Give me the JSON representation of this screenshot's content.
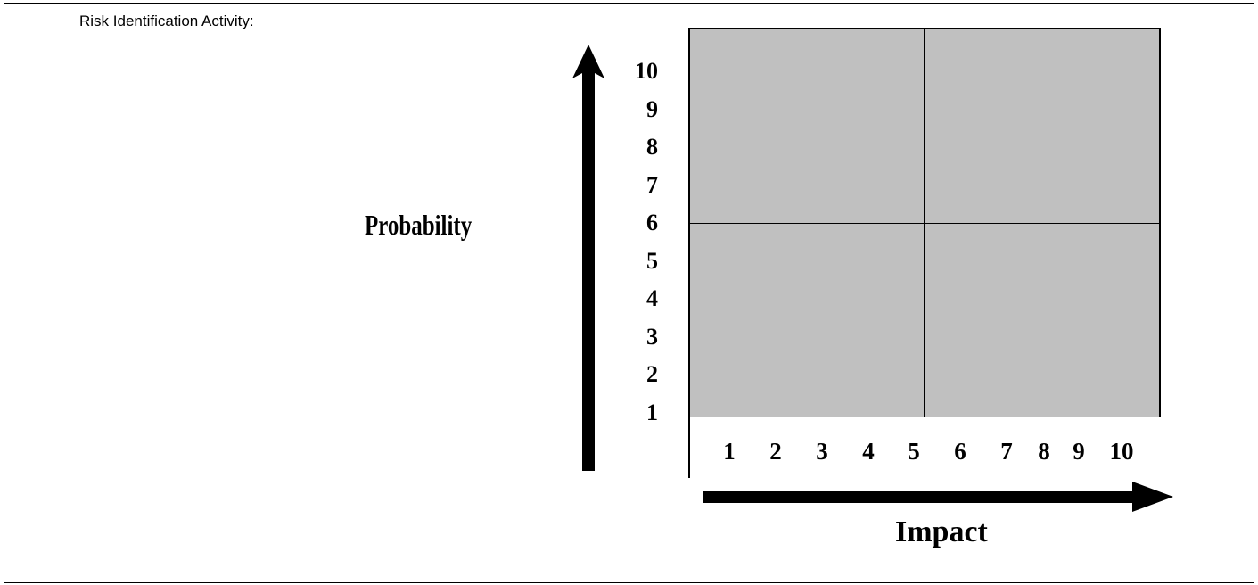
{
  "heading": "Risk Identification Activity:",
  "y_axis": {
    "label": "Probability",
    "ticks": [
      "10",
      "9",
      "8",
      "7",
      "6",
      "5",
      "4",
      "3",
      "2",
      "1"
    ]
  },
  "x_axis": {
    "label": "Impact",
    "ticks": [
      "1",
      "2",
      "3",
      "4",
      "5",
      "6",
      "7",
      "8",
      "9",
      "10"
    ]
  },
  "matrix": {
    "rows": 2,
    "cols": 2,
    "fill_color": "#c0c0c0"
  }
}
